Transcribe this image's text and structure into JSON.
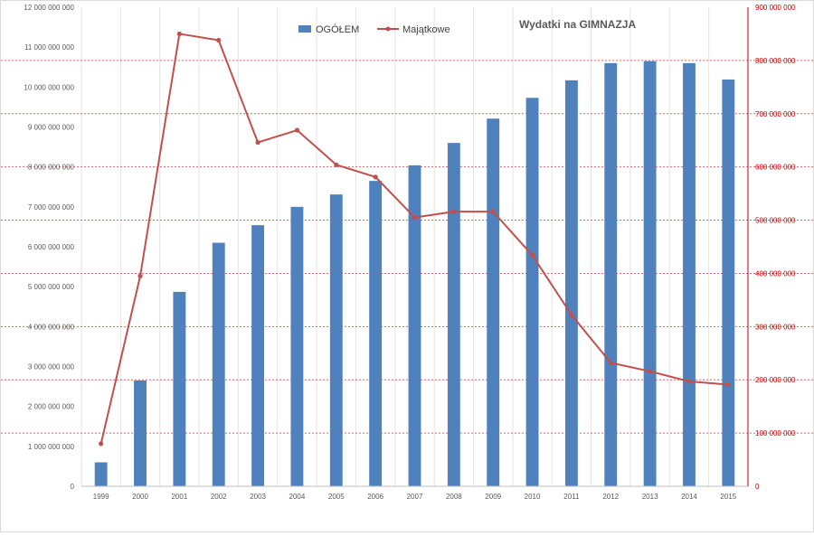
{
  "chart_data": {
    "type": "bar",
    "title": "Wydatki na GIMNAZJA",
    "categories": [
      "1999",
      "2000",
      "2001",
      "2002",
      "2003",
      "2004",
      "2005",
      "2006",
      "2007",
      "2008",
      "2009",
      "2010",
      "2011",
      "2012",
      "2013",
      "2014",
      "2015"
    ],
    "series": [
      {
        "name": "OGÓŁEM",
        "type": "bar",
        "axis": "left",
        "color": "#4f81bd",
        "values": [
          600000000,
          2650000000,
          4870000000,
          6100000000,
          6540000000,
          7000000000,
          7310000000,
          7650000000,
          8040000000,
          8600000000,
          9210000000,
          9730000000,
          10170000000,
          10600000000,
          10650000000,
          10600000000,
          10190000000
        ]
      },
      {
        "name": "Majątkowe",
        "type": "line",
        "axis": "right",
        "color": "#c0504d",
        "values": [
          80000000,
          395000000,
          850000000,
          838000000,
          646000000,
          669000000,
          604000000,
          581000000,
          505000000,
          516000000,
          516000000,
          434000000,
          322000000,
          232000000,
          216000000,
          197000000,
          191000000
        ]
      }
    ],
    "y_left": {
      "min": 0,
      "max": 12000000000,
      "ticks": [
        "0",
        "1 000 000 000",
        "2 000 000 000",
        "3 000 000 000",
        "4 000 000 000",
        "5 000 000 000",
        "6 000 000 000",
        "7 000 000 000",
        "8 000 000 000",
        "9 000 000 000",
        "10 000 000 000",
        "11 000 000 000",
        "12 000 000 000"
      ]
    },
    "y_right": {
      "min": 0,
      "max": 900000000,
      "ticks": [
        "0",
        "100 000 000",
        "200 000 000",
        "300 000 000",
        "400 000 000",
        "500 000 000",
        "600 000 000",
        "700 000 000",
        "800 000 000",
        "900 000 000"
      ]
    },
    "legend_position": "top",
    "grid": "vertical solid; horizontal dashed at right-axis ticks"
  }
}
